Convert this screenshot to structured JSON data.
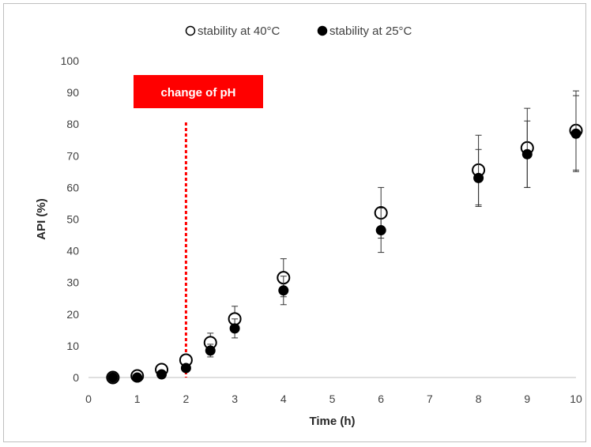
{
  "chart_data": {
    "type": "scatter",
    "title": "",
    "xlabel": "Time (h)",
    "ylabel": "API (%)",
    "xlim": [
      0,
      10
    ],
    "ylim": [
      0,
      100
    ],
    "x_ticks": [
      "0",
      "1",
      "2",
      "3",
      "4",
      "5",
      "6",
      "7",
      "8",
      "9",
      "10"
    ],
    "y_ticks": [
      "0",
      "10",
      "20",
      "30",
      "40",
      "50",
      "60",
      "70",
      "80",
      "90",
      "100"
    ],
    "grid": false,
    "legend_position": "top-center",
    "series": [
      {
        "name": "stability at 40°C",
        "marker": "open-circle",
        "color": "#000000",
        "points": [
          {
            "x": 0.5,
            "y": 0,
            "err": 0
          },
          {
            "x": 1,
            "y": 0.5,
            "err": 0
          },
          {
            "x": 1.5,
            "y": 2.5,
            "err": 1
          },
          {
            "x": 2,
            "y": 5.5,
            "err": 1.5
          },
          {
            "x": 2.5,
            "y": 11,
            "err": 3
          },
          {
            "x": 3,
            "y": 18.5,
            "err": 4
          },
          {
            "x": 4,
            "y": 31.5,
            "err": 6
          },
          {
            "x": 6,
            "y": 52,
            "err": 8
          },
          {
            "x": 8,
            "y": 65.5,
            "err": 11
          },
          {
            "x": 9,
            "y": 72.5,
            "err": 12.5
          },
          {
            "x": 10,
            "y": 78,
            "err": 12.5
          }
        ]
      },
      {
        "name": "stability at 25°C",
        "marker": "filled-circle",
        "color": "#000000",
        "points": [
          {
            "x": 0.5,
            "y": 0,
            "err": 0
          },
          {
            "x": 1,
            "y": 0,
            "err": 0
          },
          {
            "x": 1.5,
            "y": 1,
            "err": 0.5
          },
          {
            "x": 2,
            "y": 3,
            "err": 1
          },
          {
            "x": 2.5,
            "y": 8.5,
            "err": 2
          },
          {
            "x": 3,
            "y": 15.5,
            "err": 3
          },
          {
            "x": 4,
            "y": 27.5,
            "err": 4.5
          },
          {
            "x": 6,
            "y": 46.5,
            "err": 7
          },
          {
            "x": 8,
            "y": 63,
            "err": 9
          },
          {
            "x": 9,
            "y": 70.5,
            "err": 10.5
          },
          {
            "x": 10,
            "y": 77,
            "err": 12
          }
        ]
      }
    ],
    "annotation": {
      "text": "change of pH",
      "x": 2,
      "line_color": "#ff0000",
      "box_color": "#ff0000"
    }
  }
}
